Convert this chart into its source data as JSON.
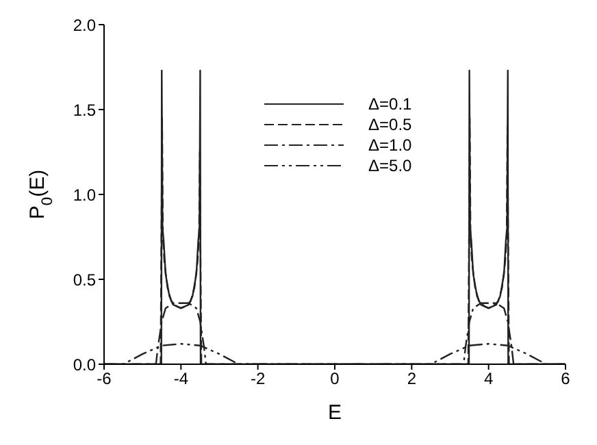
{
  "chart_data": {
    "type": "line",
    "xlabel": "E",
    "ylabel": "P$_{0}$(E)",
    "xlim": [
      -6,
      6
    ],
    "xticks": [
      -6,
      -4,
      -2,
      0,
      2,
      4,
      6
    ],
    "ylim": [
      0,
      2
    ],
    "yticks": [
      {
        "value": 0,
        "label": "0.0"
      },
      {
        "value": 0.5,
        "label": "0.5"
      },
      {
        "value": 1,
        "label": "1.0"
      },
      {
        "value": 1.5,
        "label": "1.5"
      },
      {
        "value": 2,
        "label": "2.0"
      }
    ],
    "grid": false,
    "legend": "top",
    "marker": "none",
    "series": [
      {
        "name": "Δ=0.1",
        "color": "#222222",
        "line_style": "solid",
        "x": [
          -6,
          -4.51,
          -4.5,
          -4.48,
          -4.45,
          -4.4,
          -4.3,
          -4.2,
          -4,
          -3.8,
          -3.7,
          -3.6,
          -3.55,
          -3.52,
          -3.5,
          -3.49,
          3.49,
          3.5,
          3.52,
          3.55,
          3.6,
          3.7,
          3.8,
          4,
          4.2,
          4.3,
          4.4,
          4.45,
          4.48,
          4.5,
          4.51,
          6
        ],
        "values": [
          0,
          0,
          1.73,
          0.8,
          0.73,
          0.53,
          0.4,
          0.35,
          0.33,
          0.35,
          0.4,
          0.53,
          0.73,
          0.8,
          1.73,
          0,
          0,
          1.73,
          0.8,
          0.73,
          0.53,
          0.4,
          0.35,
          0.33,
          0.35,
          0.4,
          0.53,
          0.73,
          0.8,
          1.73,
          0,
          0
        ]
      },
      {
        "name": "Δ=0.5",
        "color": "#222222",
        "line_style": "dashed",
        "x": [
          -6,
          -4.53,
          -4.49,
          -4.47,
          -4.43,
          -4.35,
          -4.25,
          -4.1,
          -4,
          -3.9,
          -3.75,
          -3.65,
          -3.57,
          -3.53,
          -3.51,
          -3.47,
          3.47,
          3.51,
          3.53,
          3.57,
          3.65,
          3.75,
          3.9,
          4,
          4.1,
          4.25,
          4.35,
          4.43,
          4.47,
          4.49,
          4.53,
          6
        ],
        "values": [
          0,
          0,
          1.45,
          0.75,
          0.6,
          0.45,
          0.37,
          0.34,
          0.33,
          0.34,
          0.37,
          0.45,
          0.6,
          0.75,
          1.25,
          0,
          0,
          1.45,
          0.75,
          0.6,
          0.45,
          0.37,
          0.34,
          0.33,
          0.34,
          0.37,
          0.45,
          0.6,
          0.75,
          1.4,
          0,
          0
        ]
      },
      {
        "name": "Δ=1.0",
        "color": "#222222",
        "line_style": "dashdot",
        "x": [
          -6,
          -4.65,
          -4.6,
          -4.5,
          -4.4,
          -4.2,
          -4,
          -3.8,
          -3.6,
          -3.5,
          -3.4,
          -3.35,
          3.35,
          3.4,
          3.5,
          3.6,
          3.8,
          4,
          4.2,
          4.4,
          4.5,
          4.6,
          4.65,
          6
        ],
        "values": [
          0,
          0,
          0.1,
          0.25,
          0.33,
          0.36,
          0.36,
          0.36,
          0.33,
          0.25,
          0.1,
          0,
          0,
          0.1,
          0.25,
          0.33,
          0.36,
          0.36,
          0.36,
          0.33,
          0.25,
          0.1,
          0,
          0
        ]
      },
      {
        "name": "Δ=5.0",
        "color": "#222222",
        "line_style": "dashdotdot",
        "x": [
          -6,
          -5.5,
          -5,
          -4.5,
          -4,
          -3.5,
          -3,
          -2.5,
          2.5,
          3,
          3.5,
          4,
          4.5,
          5,
          5.5,
          6
        ],
        "values": [
          0,
          0,
          0.06,
          0.11,
          0.12,
          0.11,
          0.06,
          0,
          0,
          0.06,
          0.11,
          0.12,
          0.11,
          0.06,
          0,
          0
        ]
      }
    ]
  }
}
